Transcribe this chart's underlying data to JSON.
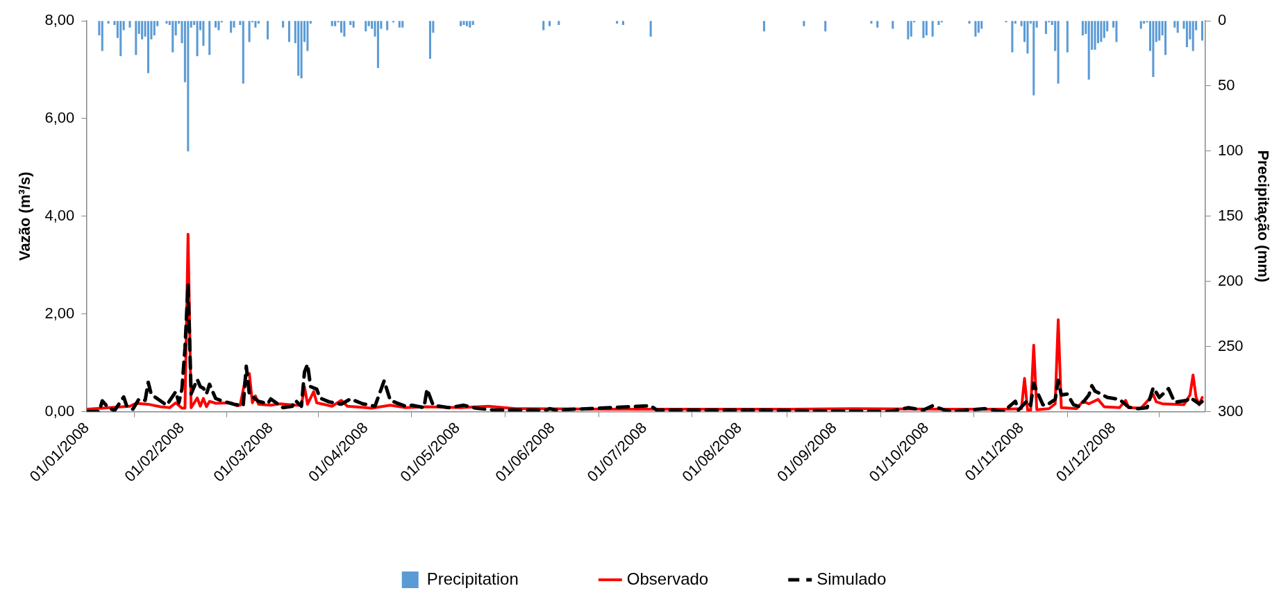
{
  "chart_data": {
    "type": "line",
    "ylabel": "Vazão (m³/s)",
    "y2label": "Precipitação (mm)",
    "xlim": [
      "2008-01-01",
      "2008-12-31"
    ],
    "xticks": [
      {
        "value": "2008-01-01",
        "label": "01/01/2008"
      },
      {
        "value": "2008-02-01",
        "label": "01/02/2008"
      },
      {
        "value": "2008-03-01",
        "label": "01/03/2008"
      },
      {
        "value": "2008-04-01",
        "label": "01/04/2008"
      },
      {
        "value": "2008-05-01",
        "label": "01/05/2008"
      },
      {
        "value": "2008-06-01",
        "label": "01/06/2008"
      },
      {
        "value": "2008-07-01",
        "label": "01/07/2008"
      },
      {
        "value": "2008-08-01",
        "label": "01/08/2008"
      },
      {
        "value": "2008-09-01",
        "label": "01/09/2008"
      },
      {
        "value": "2008-10-01",
        "label": "01/10/2008"
      },
      {
        "value": "2008-11-01",
        "label": "01/11/2008"
      },
      {
        "value": "2008-12-01",
        "label": "01/12/2008"
      }
    ],
    "ylim": [
      0,
      8
    ],
    "yticks": [
      {
        "value": 0,
        "label": "0,00"
      },
      {
        "value": 2,
        "label": "2,00"
      },
      {
        "value": 4,
        "label": "4,00"
      },
      {
        "value": 6,
        "label": "6,00"
      },
      {
        "value": 8,
        "label": "8,00"
      }
    ],
    "y2lim": [
      300,
      0
    ],
    "y2ticks": [
      0,
      50,
      100,
      150,
      200,
      250,
      300
    ],
    "grid": false,
    "legend": "bottom",
    "marker": "none",
    "series": [
      {
        "name": "Precipitation",
        "type": "bar",
        "axis": "y2",
        "color": "#5b9bd5",
        "x": [
          "2008-01-05",
          "2008-01-06",
          "2008-01-08",
          "2008-01-10",
          "2008-01-11",
          "2008-01-12",
          "2008-01-13",
          "2008-01-15",
          "2008-01-17",
          "2008-01-18",
          "2008-01-19",
          "2008-01-20",
          "2008-01-21",
          "2008-01-22",
          "2008-01-23",
          "2008-01-24",
          "2008-01-27",
          "2008-01-28",
          "2008-01-29",
          "2008-01-30",
          "2008-01-31",
          "2008-02-01",
          "2008-02-02",
          "2008-02-03",
          "2008-02-04",
          "2008-02-05",
          "2008-02-06",
          "2008-02-07",
          "2008-02-08",
          "2008-02-10",
          "2008-02-12",
          "2008-02-13",
          "2008-02-14",
          "2008-02-17",
          "2008-02-18",
          "2008-02-20",
          "2008-02-21",
          "2008-02-23",
          "2008-02-24",
          "2008-02-25",
          "2008-02-26",
          "2008-02-29",
          "2008-03-05",
          "2008-03-07",
          "2008-03-09",
          "2008-03-10",
          "2008-03-11",
          "2008-03-12",
          "2008-03-13",
          "2008-03-14",
          "2008-03-21",
          "2008-03-22",
          "2008-03-23",
          "2008-03-24",
          "2008-03-25",
          "2008-03-27",
          "2008-03-28",
          "2008-04-01",
          "2008-04-02",
          "2008-04-03",
          "2008-04-04",
          "2008-04-05",
          "2008-04-06",
          "2008-04-08",
          "2008-04-10",
          "2008-04-12",
          "2008-04-13",
          "2008-04-22",
          "2008-04-23",
          "2008-05-02",
          "2008-05-03",
          "2008-05-04",
          "2008-05-05",
          "2008-05-06",
          "2008-05-29",
          "2008-05-31",
          "2008-06-03",
          "2008-06-22",
          "2008-06-24",
          "2008-07-03",
          "2008-08-09",
          "2008-08-22",
          "2008-08-29",
          "2008-09-13",
          "2008-09-15",
          "2008-09-20",
          "2008-09-25",
          "2008-09-26",
          "2008-09-27",
          "2008-09-30",
          "2008-10-01",
          "2008-10-03",
          "2008-10-05",
          "2008-10-06",
          "2008-10-15",
          "2008-10-17",
          "2008-10-18",
          "2008-10-19",
          "2008-10-27",
          "2008-10-29",
          "2008-10-30",
          "2008-11-01",
          "2008-11-02",
          "2008-11-03",
          "2008-11-04",
          "2008-11-05",
          "2008-11-06",
          "2008-11-09",
          "2008-11-10",
          "2008-11-11",
          "2008-11-12",
          "2008-11-13",
          "2008-11-16",
          "2008-11-21",
          "2008-11-22",
          "2008-11-23",
          "2008-11-24",
          "2008-11-25",
          "2008-11-26",
          "2008-11-27",
          "2008-11-28",
          "2008-11-29",
          "2008-12-01",
          "2008-12-02",
          "2008-12-10",
          "2008-12-11",
          "2008-12-12",
          "2008-12-13",
          "2008-12-14",
          "2008-12-15",
          "2008-12-16",
          "2008-12-17",
          "2008-12-18",
          "2008-12-21",
          "2008-12-22",
          "2008-12-24",
          "2008-12-25",
          "2008-12-26",
          "2008-12-27",
          "2008-12-28",
          "2008-12-30"
        ],
        "values": [
          11,
          23,
          2,
          3,
          13,
          27,
          7,
          5,
          26,
          10,
          14,
          12,
          40,
          14,
          11,
          4,
          2,
          3,
          24,
          11,
          2,
          17,
          47,
          100,
          5,
          3,
          27,
          7,
          19,
          26,
          5,
          7,
          1,
          9,
          5,
          3,
          48,
          16,
          1,
          5,
          2,
          14,
          5,
          16,
          17,
          42,
          44,
          16,
          23,
          2,
          4,
          4,
          1,
          9,
          12,
          3,
          5,
          8,
          4,
          6,
          12,
          36,
          6,
          7,
          1,
          5,
          5,
          29,
          9,
          4,
          3,
          4,
          5,
          3,
          7,
          4,
          3,
          2,
          3,
          12,
          8,
          4,
          8,
          2,
          5,
          6,
          14,
          12,
          1,
          13,
          11,
          12,
          3,
          1,
          2,
          12,
          9,
          6,
          1,
          24,
          2,
          4,
          16,
          25,
          2,
          57,
          5,
          10,
          1,
          3,
          23,
          48,
          24,
          11,
          10,
          45,
          22,
          22,
          17,
          16,
          13,
          8,
          5,
          16,
          6,
          2,
          1,
          23,
          43,
          16,
          15,
          11,
          26,
          5,
          9,
          6,
          20,
          14,
          23,
          7,
          15
        ]
      },
      {
        "name": "Observado",
        "color": "#ff0000",
        "x": [
          "2008-01-01",
          "2008-01-15",
          "2008-01-17",
          "2008-01-21",
          "2008-01-25",
          "2008-01-28",
          "2008-01-30",
          "2008-02-01",
          "2008-02-02",
          "2008-02-03",
          "2008-02-04",
          "2008-02-06",
          "2008-02-07",
          "2008-02-08",
          "2008-02-09",
          "2008-02-10",
          "2008-02-12",
          "2008-02-17",
          "2008-02-19",
          "2008-02-20",
          "2008-02-22",
          "2008-02-23",
          "2008-02-24",
          "2008-02-25",
          "2008-02-26",
          "2008-03-01",
          "2008-03-04",
          "2008-03-09",
          "2008-03-11",
          "2008-03-12",
          "2008-03-13",
          "2008-03-15",
          "2008-03-16",
          "2008-03-21",
          "2008-03-24",
          "2008-03-26",
          "2008-04-03",
          "2008-04-09",
          "2008-04-14",
          "2008-04-21",
          "2008-05-02",
          "2008-05-11",
          "2008-05-20",
          "2008-06-19",
          "2008-07-19",
          "2008-08-18",
          "2008-09-07",
          "2008-10-07",
          "2008-10-27",
          "2008-11-01",
          "2008-11-02",
          "2008-11-03",
          "2008-11-04",
          "2008-11-05",
          "2008-11-06",
          "2008-11-10",
          "2008-11-12",
          "2008-11-13",
          "2008-11-14",
          "2008-11-19",
          "2008-11-21",
          "2008-11-23",
          "2008-11-26",
          "2008-11-28",
          "2008-12-03",
          "2008-12-05",
          "2008-12-06",
          "2008-12-10",
          "2008-12-14",
          "2008-12-15",
          "2008-12-17",
          "2008-12-24",
          "2008-12-26",
          "2008-12-27",
          "2008-12-28",
          "2008-12-29",
          "2008-12-30"
        ],
        "values": [
          0.05,
          0.11,
          0.17,
          0.15,
          0.1,
          0.08,
          0.18,
          0.07,
          0.07,
          3.63,
          0.08,
          0.28,
          0.11,
          0.27,
          0.1,
          0.21,
          0.17,
          0.18,
          0.12,
          0.13,
          0.76,
          0.78,
          0.18,
          0.32,
          0.15,
          0.13,
          0.16,
          0.13,
          0.13,
          0.51,
          0.15,
          0.41,
          0.18,
          0.11,
          0.23,
          0.11,
          0.07,
          0.13,
          0.08,
          0.1,
          0.08,
          0.11,
          0.06,
          0.05,
          0.05,
          0.05,
          0.06,
          0.05,
          0.05,
          0.06,
          0.68,
          0.03,
          0.03,
          1.36,
          0.04,
          0.06,
          0.16,
          1.88,
          0.08,
          0.06,
          0.21,
          0.16,
          0.25,
          0.1,
          0.08,
          0.23,
          0.08,
          0.07,
          0.35,
          0.2,
          0.16,
          0.14,
          0.34,
          0.75,
          0.29,
          0.14,
          0.29
        ]
      },
      {
        "name": "Simulado",
        "line_style": "dashed",
        "color": "#000000",
        "x": [
          "2008-01-01",
          "2008-01-05",
          "2008-01-06",
          "2008-01-08",
          "2008-01-10",
          "2008-01-13",
          "2008-01-14",
          "2008-01-16",
          "2008-01-18",
          "2008-01-20",
          "2008-01-21",
          "2008-01-22",
          "2008-01-25",
          "2008-01-27",
          "2008-01-30",
          "2008-01-31",
          "2008-02-01",
          "2008-02-02",
          "2008-02-03",
          "2008-02-04",
          "2008-02-06",
          "2008-02-07",
          "2008-02-08",
          "2008-02-09",
          "2008-02-10",
          "2008-02-12",
          "2008-02-14",
          "2008-02-18",
          "2008-02-21",
          "2008-02-22",
          "2008-02-23",
          "2008-02-26",
          "2008-02-29",
          "2008-03-01",
          "2008-03-05",
          "2008-03-08",
          "2008-03-09",
          "2008-03-11",
          "2008-03-12",
          "2008-03-13",
          "2008-03-14",
          "2008-03-16",
          "2008-03-17",
          "2008-03-20",
          "2008-03-24",
          "2008-03-27",
          "2008-03-31",
          "2008-04-04",
          "2008-04-07",
          "2008-04-09",
          "2008-04-11",
          "2008-04-14",
          "2008-04-16",
          "2008-04-20",
          "2008-04-21",
          "2008-04-23",
          "2008-04-28",
          "2008-05-03",
          "2008-05-07",
          "2008-05-13",
          "2008-05-30",
          "2008-05-31",
          "2008-06-02",
          "2008-07-03",
          "2008-07-05",
          "2008-08-08",
          "2008-09-19",
          "2008-09-25",
          "2008-09-30",
          "2008-10-03",
          "2008-10-07",
          "2008-10-10",
          "2008-10-20",
          "2008-10-26",
          "2008-10-30",
          "2008-10-31",
          "2008-11-03",
          "2008-11-04",
          "2008-11-05",
          "2008-11-06",
          "2008-11-08",
          "2008-11-09",
          "2008-11-12",
          "2008-11-13",
          "2008-11-14",
          "2008-11-16",
          "2008-11-18",
          "2008-11-20",
          "2008-11-23",
          "2008-11-24",
          "2008-11-25",
          "2008-11-27",
          "2008-11-29",
          "2008-12-03",
          "2008-12-06",
          "2008-12-09",
          "2008-12-12",
          "2008-12-14",
          "2008-12-16",
          "2008-12-19",
          "2008-12-21",
          "2008-12-25",
          "2008-12-26",
          "2008-12-29",
          "2008-12-31"
        ],
        "values": [
          0.0,
          0.0,
          0.22,
          0.08,
          0.02,
          0.3,
          0.11,
          0.05,
          0.26,
          0.23,
          0.6,
          0.35,
          0.22,
          0.13,
          0.41,
          0.18,
          0.46,
          1.3,
          2.61,
          0.36,
          0.66,
          0.51,
          0.48,
          0.36,
          0.56,
          0.27,
          0.22,
          0.15,
          0.12,
          0.93,
          0.36,
          0.21,
          0.16,
          0.26,
          0.08,
          0.11,
          0.23,
          0.11,
          0.81,
          0.97,
          0.51,
          0.46,
          0.28,
          0.2,
          0.15,
          0.26,
          0.16,
          0.11,
          0.63,
          0.23,
          0.18,
          0.11,
          0.13,
          0.08,
          0.46,
          0.13,
          0.08,
          0.13,
          0.07,
          0.03,
          0.03,
          0.06,
          0.03,
          0.12,
          0.03,
          0.03,
          0.0,
          0.08,
          0.03,
          0.12,
          0.03,
          0.01,
          0.06,
          0.0,
          0.21,
          0.03,
          0.23,
          0.13,
          0.58,
          0.42,
          0.14,
          0.12,
          0.25,
          0.64,
          0.34,
          0.36,
          0.14,
          0.1,
          0.34,
          0.53,
          0.42,
          0.36,
          0.29,
          0.25,
          0.09,
          0.06,
          0.08,
          0.49,
          0.29,
          0.47,
          0.19,
          0.23,
          0.29,
          0.16,
          0.26
        ]
      }
    ]
  }
}
